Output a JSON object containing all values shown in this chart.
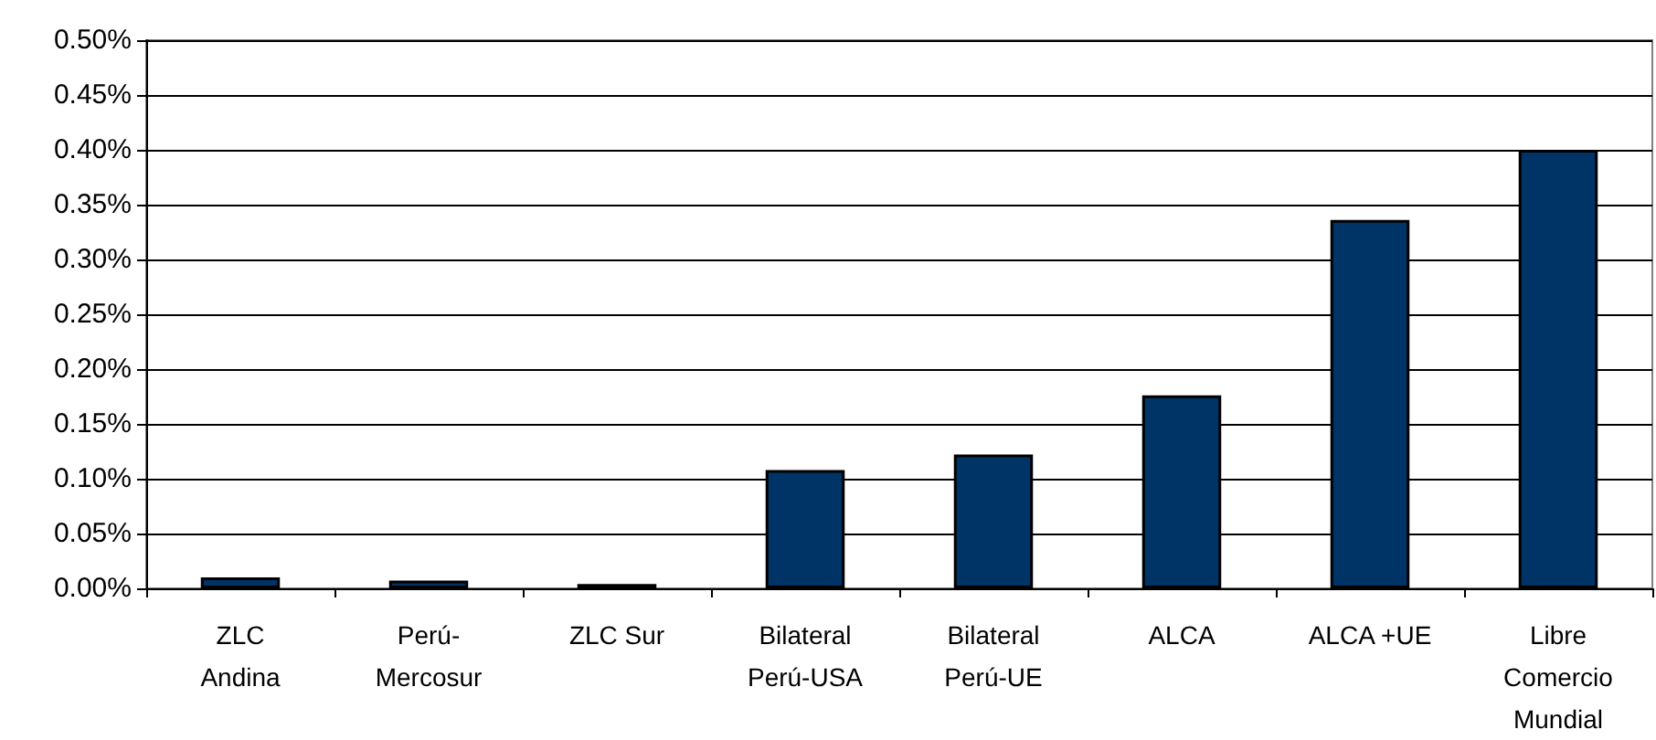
{
  "chart_data": {
    "type": "bar",
    "categories": [
      "ZLC\nAndina",
      "Perú-\nMercosur",
      "ZLC Sur",
      "Bilateral\nPerú-USA",
      "Bilateral\nPerú-UE",
      "ALCA",
      "ALCA +UE",
      "Libre\nComercio\nMundial"
    ],
    "values": [
      0.01,
      0.007,
      0.004,
      0.108,
      0.122,
      0.176,
      0.336,
      0.4
    ],
    "color": "#003366",
    "ylim": [
      0,
      0.5
    ],
    "yticks": [
      {
        "value": 0,
        "label": "0.00%"
      },
      {
        "value": 0.05,
        "label": "0.05%"
      },
      {
        "value": 0.1,
        "label": "0.10%"
      },
      {
        "value": 0.15,
        "label": "0.15%"
      },
      {
        "value": 0.2,
        "label": "0.20%"
      },
      {
        "value": 0.25,
        "label": "0.25%"
      },
      {
        "value": 0.3,
        "label": "0.30%"
      },
      {
        "value": 0.35,
        "label": "0.35%"
      },
      {
        "value": 0.4,
        "label": "0.40%"
      },
      {
        "value": 0.45,
        "label": "0.45%"
      },
      {
        "value": 0.5,
        "label": "0.50%"
      }
    ],
    "grid": "y"
  }
}
